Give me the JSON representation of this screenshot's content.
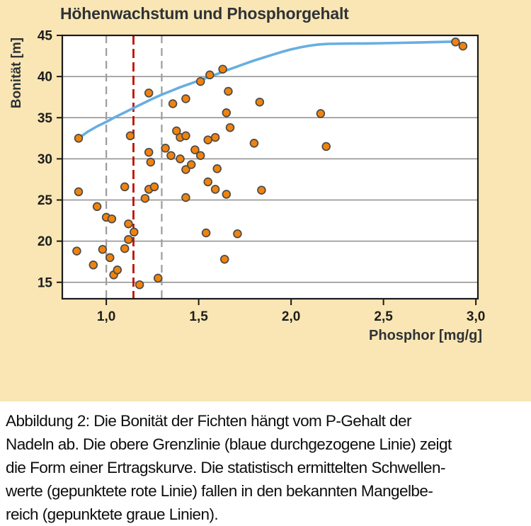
{
  "chart_data": {
    "type": "scatter",
    "title": "Höhenwachstum und Phosphorgehalt",
    "xlabel": "Phosphor [mg/g]",
    "ylabel": "Bonität [m]",
    "xlim": [
      0.762,
      3.011
    ],
    "ylim": [
      13.0,
      45.0
    ],
    "grid": "horizontal",
    "legend": "none",
    "x_ticks": [
      1.0,
      1.5,
      2.0,
      2.5,
      3.0
    ],
    "x_tick_labels": [
      "1,0",
      "1,5",
      "2,0",
      "2,5",
      "3,0"
    ],
    "y_ticks": [
      15,
      20,
      25,
      30,
      35,
      40,
      45
    ],
    "y_tick_labels": [
      "15",
      "20",
      "25",
      "30",
      "35",
      "40",
      "45"
    ],
    "points": [
      [
        0.85,
        32.5
      ],
      [
        0.85,
        26.0
      ],
      [
        0.84,
        18.8
      ],
      [
        0.93,
        17.1
      ],
      [
        0.95,
        24.2
      ],
      [
        0.98,
        19.0
      ],
      [
        1.0,
        22.9
      ],
      [
        1.03,
        22.7
      ],
      [
        1.02,
        18.0
      ],
      [
        1.04,
        15.9
      ],
      [
        1.06,
        16.5
      ],
      [
        1.1,
        26.6
      ],
      [
        1.1,
        19.1
      ],
      [
        1.12,
        22.1
      ],
      [
        1.12,
        20.2
      ],
      [
        1.13,
        32.8
      ],
      [
        1.15,
        21.1
      ],
      [
        1.18,
        14.7
      ],
      [
        1.21,
        25.2
      ],
      [
        1.23,
        38.0
      ],
      [
        1.23,
        30.8
      ],
      [
        1.24,
        29.6
      ],
      [
        1.23,
        26.3
      ],
      [
        1.26,
        26.6
      ],
      [
        1.28,
        15.5
      ],
      [
        1.32,
        31.3
      ],
      [
        1.35,
        30.4
      ],
      [
        1.36,
        36.7
      ],
      [
        1.38,
        33.4
      ],
      [
        1.4,
        32.6
      ],
      [
        1.43,
        32.8
      ],
      [
        1.4,
        30.0
      ],
      [
        1.43,
        28.7
      ],
      [
        1.43,
        25.3
      ],
      [
        1.43,
        37.3
      ],
      [
        1.46,
        29.3
      ],
      [
        1.48,
        31.1
      ],
      [
        1.51,
        30.4
      ],
      [
        1.51,
        39.4
      ],
      [
        1.54,
        21.0
      ],
      [
        1.55,
        32.3
      ],
      [
        1.55,
        27.2
      ],
      [
        1.56,
        40.2
      ],
      [
        1.59,
        32.6
      ],
      [
        1.6,
        28.8
      ],
      [
        1.59,
        26.3
      ],
      [
        1.63,
        40.9
      ],
      [
        1.64,
        17.8
      ],
      [
        1.65,
        35.6
      ],
      [
        1.65,
        25.7
      ],
      [
        1.66,
        38.2
      ],
      [
        1.67,
        33.8
      ],
      [
        1.71,
        20.9
      ],
      [
        1.8,
        31.9
      ],
      [
        1.83,
        36.9
      ],
      [
        1.84,
        26.2
      ],
      [
        2.16,
        35.5
      ],
      [
        2.19,
        31.5
      ],
      [
        2.89,
        44.2
      ],
      [
        2.93,
        43.7
      ]
    ],
    "envelope_line": {
      "name": "Ertragskurve (obere Grenzlinie)",
      "color": "#67AEE1",
      "width": 3.6,
      "points": [
        [
          0.85,
          32.5
        ],
        [
          0.9,
          33.3
        ],
        [
          0.95,
          33.95
        ],
        [
          1.0,
          34.5
        ],
        [
          1.05,
          35.1
        ],
        [
          1.1,
          35.65
        ],
        [
          1.15,
          36.2
        ],
        [
          1.2,
          36.75
        ],
        [
          1.25,
          37.3
        ],
        [
          1.3,
          37.8
        ],
        [
          1.35,
          38.25
        ],
        [
          1.4,
          38.7
        ],
        [
          1.45,
          39.1
        ],
        [
          1.5,
          39.5
        ],
        [
          1.55,
          39.9
        ],
        [
          1.6,
          40.3
        ],
        [
          1.65,
          40.75
        ],
        [
          1.7,
          41.15
        ],
        [
          1.75,
          41.55
        ],
        [
          1.8,
          41.95
        ],
        [
          1.85,
          42.3
        ],
        [
          1.9,
          42.65
        ],
        [
          1.95,
          43.0
        ],
        [
          2.0,
          43.3
        ],
        [
          2.05,
          43.55
        ],
        [
          2.1,
          43.75
        ],
        [
          2.15,
          43.9
        ],
        [
          2.2,
          43.97
        ],
        [
          2.3,
          44.0
        ],
        [
          2.4,
          44.02
        ],
        [
          2.5,
          44.05
        ],
        [
          2.6,
          44.1
        ],
        [
          2.7,
          44.15
        ],
        [
          2.8,
          44.2
        ],
        [
          2.89,
          44.25
        ]
      ]
    },
    "vlines": [
      {
        "name": "mangelbereich-grenze-links",
        "value": 1.0,
        "color": "#9C9C9C",
        "width": 2.2,
        "dash": "11 7"
      },
      {
        "name": "schwellenwert-linie",
        "value": 1.147,
        "color": "#C00D00",
        "width": 2.8,
        "dash": "13 6"
      },
      {
        "name": "mangelbereich-grenze-rechts",
        "value": 1.3,
        "color": "#9C9C9C",
        "width": 2.2,
        "dash": "11 7"
      }
    ],
    "colors": {
      "panel_background": "#FAE6B4",
      "plot_background": "#FFFFFF",
      "plot_border": "#1A1A1A",
      "gridline": "#8D8D8D",
      "point_fill": "#F0830D",
      "point_stroke": "#4A4A4A",
      "tick_label": "#1D1D1D",
      "title_text": "#2F3336"
    }
  },
  "caption": {
    "lines": [
      "Abbildung 2: Die Bonität der Fichten hängt vom P-Gehalt der",
      "Nadeln ab. Die obere Grenzlinie (blaue durchgezogene Linie) zeigt",
      "die Form einer Ertragskurve. Die statistisch ermittelten Schwellen-",
      "werte (gepunktete rote Linie) fallen in den bekannten Mangelbe-",
      "reich (gepunktete graue Linien)."
    ]
  }
}
